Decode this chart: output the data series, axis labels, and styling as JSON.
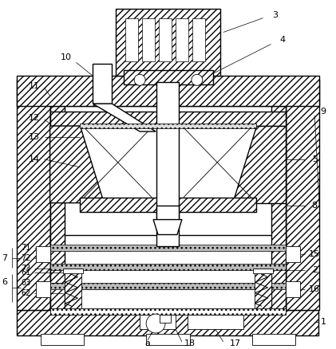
{
  "bg_color": "#ffffff",
  "line_color": "#000000",
  "fig_width": 4.21,
  "fig_height": 4.38,
  "dpi": 100
}
